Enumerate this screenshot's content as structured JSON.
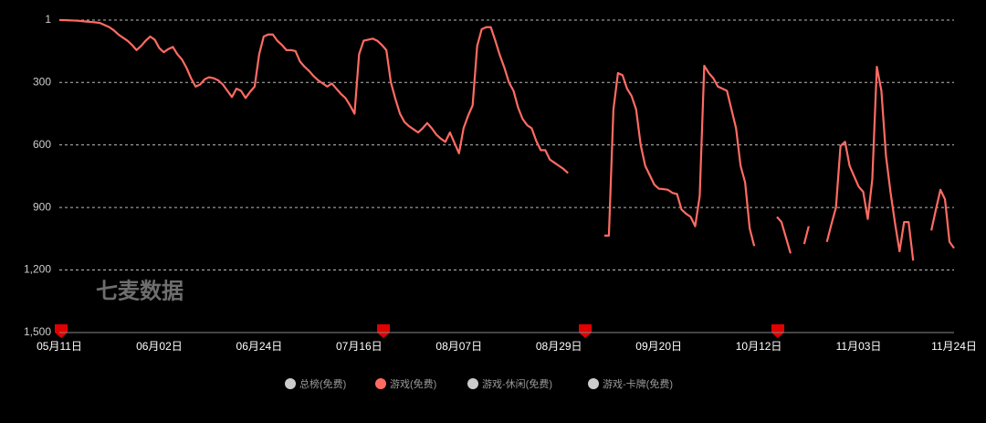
{
  "chart_data": {
    "type": "line",
    "watermark": "七麦数据",
    "ylim": [
      1500,
      1
    ],
    "yticks": [
      1,
      300,
      600,
      900,
      {
        "value": 1200,
        "label": "1,200"
      },
      {
        "value": 1500,
        "label": "1,500"
      }
    ],
    "grid": true,
    "categories": [
      "05月11日",
      null,
      null,
      null,
      null,
      null,
      null,
      null,
      null,
      null,
      null,
      null,
      null,
      null,
      null,
      null,
      null,
      null,
      null,
      null,
      null,
      null,
      "06月02日",
      null,
      null,
      null,
      null,
      null,
      null,
      null,
      null,
      null,
      null,
      null,
      null,
      null,
      null,
      null,
      null,
      null,
      null,
      null,
      null,
      null,
      "06月24日",
      null,
      null,
      null,
      null,
      null,
      null,
      null,
      null,
      null,
      null,
      null,
      null,
      null,
      null,
      null,
      null,
      null,
      null,
      null,
      null,
      null,
      "07月16日",
      null,
      null,
      null,
      null,
      null,
      null,
      null,
      null,
      null,
      null,
      null,
      null,
      null,
      null,
      null,
      null,
      null,
      null,
      null,
      null,
      null,
      "08月07日",
      null,
      null,
      null,
      null,
      null,
      null,
      null,
      null,
      null,
      null,
      null,
      null,
      null,
      null,
      null,
      null,
      null,
      null,
      null,
      null,
      null,
      "08月29日",
      null,
      null,
      null,
      null,
      null,
      null,
      null,
      null,
      null,
      null,
      null,
      null,
      null,
      null,
      null,
      null,
      null,
      null,
      null,
      null,
      null,
      "09月20日",
      null,
      null,
      null,
      null,
      null,
      null,
      null,
      null,
      null,
      null,
      null,
      null,
      null,
      null,
      null,
      null,
      null,
      null,
      null,
      null,
      null,
      "10月12日",
      null,
      null,
      null,
      null,
      null,
      null,
      null,
      null,
      null,
      null,
      null,
      null,
      null,
      null,
      null,
      null,
      null,
      null,
      null,
      null,
      null,
      "11月03日",
      null,
      null,
      null,
      null,
      null,
      null,
      null,
      null,
      null,
      null,
      null,
      null,
      null,
      null,
      null,
      null,
      null,
      null,
      null,
      null,
      "11月24日"
    ],
    "series": [
      {
        "name": "总榜(免费)",
        "color": "#cccccc",
        "visible": false
      },
      {
        "name": "游戏(免费)",
        "color": "#ff6b63",
        "visible": true,
        "values": [
          1,
          1,
          2,
          3,
          4,
          6,
          8,
          10,
          12,
          15,
          25,
          35,
          50,
          70,
          85,
          100,
          120,
          145,
          125,
          100,
          80,
          95,
          135,
          155,
          140,
          130,
          165,
          190,
          230,
          280,
          320,
          310,
          285,
          275,
          280,
          290,
          310,
          340,
          370,
          330,
          340,
          375,
          345,
          320,
          165,
          80,
          70,
          70,
          100,
          120,
          145,
          145,
          150,
          200,
          225,
          245,
          270,
          290,
          305,
          320,
          305,
          330,
          355,
          375,
          410,
          450,
          165,
          100,
          95,
          90,
          100,
          120,
          145,
          300,
          380,
          450,
          490,
          510,
          525,
          540,
          520,
          495,
          520,
          550,
          570,
          585,
          540,
          590,
          640,
          520,
          460,
          410,
          125,
          45,
          35,
          35,
          100,
          170,
          230,
          300,
          340,
          420,
          475,
          505,
          520,
          580,
          625,
          625,
          670,
          685,
          700,
          715,
          735,
          null,
          null,
          null,
          null,
          null,
          null,
          null,
          1035,
          1035,
          430,
          255,
          265,
          330,
          365,
          430,
          600,
          700,
          745,
          790,
          810,
          812,
          815,
          830,
          835,
          910,
          930,
          945,
          990,
          845,
          220,
          255,
          280,
          320,
          330,
          340,
          430,
          520,
          700,
          780,
          1000,
          1085,
          null,
          null,
          null,
          null,
          945,
          970,
          1045,
          1120,
          null,
          null,
          1075,
          990,
          null,
          null,
          null,
          1065,
          980,
          900,
          605,
          585,
          700,
          750,
          800,
          825,
          955,
          765,
          225,
          340,
          650,
          825,
          975,
          1110,
          970,
          970,
          1155,
          null,
          null,
          null,
          1010,
          910,
          815,
          860,
          1065,
          1095
        ]
      },
      {
        "name": "游戏-休闲(免费)",
        "color": "#cccccc",
        "visible": false
      },
      {
        "name": "游戏-卡牌(免费)",
        "color": "#cccccc",
        "visible": false
      }
    ]
  }
}
